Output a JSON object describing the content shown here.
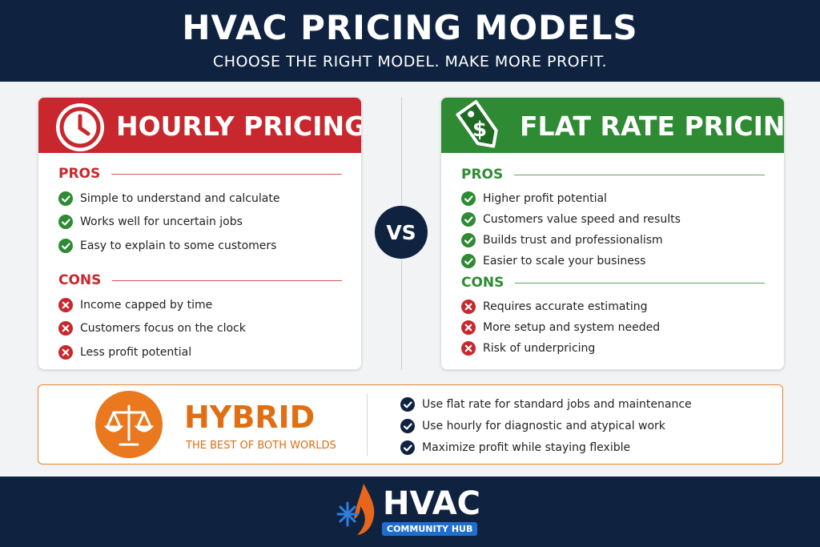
{
  "header": {
    "title": "HVAC PRICING MODELS",
    "subtitle": "CHOOSE THE RIGHT MODEL. MAKE MORE PROFIT."
  },
  "hourly": {
    "title": "HOURLY PRICING",
    "pros_label": "PROS",
    "pros": [
      "Simple to understand and calculate",
      "Works well for uncertain jobs",
      "Easy to explain to some customers"
    ],
    "cons_label": "CONS",
    "cons": [
      "Income capped by time",
      "Customers focus on the clock",
      "Less profit potential"
    ]
  },
  "vs": "VS",
  "flat_rate": {
    "title": "FLAT RATE PRICING",
    "pros_label": "PROS",
    "pros": [
      "Higher profit potential",
      "Customers value speed and results",
      "Builds trust and professionalism",
      "Easier to scale your business"
    ],
    "cons_label": "CONS",
    "cons": [
      "Requires accurate estimating",
      "More setup and system needed",
      "Risk of underpricing"
    ]
  },
  "hybrid": {
    "title": "HYBRID",
    "subtitle": "THE BEST OF BOTH WORLDS",
    "points": [
      "Use flat rate for standard jobs and maintenance",
      "Use hourly for diagnostic and atypical work",
      "Maximize profit while staying flexible"
    ]
  },
  "footer": {
    "logo_title": "HVAC",
    "logo_subtitle": "COMMUNITY HUB"
  }
}
